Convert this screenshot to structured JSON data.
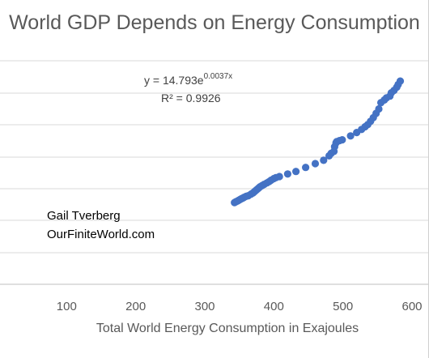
{
  "chart_data": {
    "type": "scatter",
    "title": "World GDP Depends on Energy Consumption",
    "xlabel": "Total World Energy Consumption in Exajoules",
    "ylabel": "",
    "xlim": [
      0,
      600
    ],
    "ylim": [
      0,
      110
    ],
    "x_ticks": [
      "100",
      "200",
      "300",
      "400",
      "500",
      "600"
    ],
    "grid": "horizontal",
    "color": "#4472C4",
    "trendline": {
      "equation_base": "y = 14.793e",
      "equation_exponent": "0.0037x",
      "r_squared": "R² = 0.9926"
    },
    "annotations": [
      "Gail Tverberg",
      "OurFiniteWorld.com"
    ],
    "points": [
      [
        343,
        40.2
      ],
      [
        345,
        40.6
      ],
      [
        347,
        40.9
      ],
      [
        349,
        41.3
      ],
      [
        351,
        41.7
      ],
      [
        353,
        42.1
      ],
      [
        355,
        42.4
      ],
      [
        357,
        42.8
      ],
      [
        360,
        43.3
      ],
      [
        363,
        43.6
      ],
      [
        367,
        44.4
      ],
      [
        370,
        45.0
      ],
      [
        372,
        45.6
      ],
      [
        374,
        46.2
      ],
      [
        376,
        46.8
      ],
      [
        378,
        47.4
      ],
      [
        380,
        48.0
      ],
      [
        383,
        48.6
      ],
      [
        386,
        49.2
      ],
      [
        390,
        49.9
      ],
      [
        393,
        50.5
      ],
      [
        396,
        51.2
      ],
      [
        400,
        52.0
      ],
      [
        403,
        52.5
      ],
      [
        408,
        53.0
      ],
      [
        420,
        54.3
      ],
      [
        432,
        55.5
      ],
      [
        446,
        57.5
      ],
      [
        460,
        59.4
      ],
      [
        472,
        61.0
      ],
      [
        480,
        63.2
      ],
      [
        483,
        64.5
      ],
      [
        487,
        65.4
      ],
      [
        488,
        67.7
      ],
      [
        490,
        69.6
      ],
      [
        491,
        70.2
      ],
      [
        495,
        70.7
      ],
      [
        499,
        71.1
      ],
      [
        511,
        73.0
      ],
      [
        520,
        74.7
      ],
      [
        527,
        76.2
      ],
      [
        532,
        77.5
      ],
      [
        536,
        78.6
      ],
      [
        540,
        80.2
      ],
      [
        544,
        82.0
      ],
      [
        548,
        84.1
      ],
      [
        552,
        86.3
      ],
      [
        555,
        89.4
      ],
      [
        560,
        90.7
      ],
      [
        563,
        91.7
      ],
      [
        568,
        92.6
      ],
      [
        570,
        94.2
      ],
      [
        574,
        95.4
      ],
      [
        578,
        97.0
      ],
      [
        580,
        98.3
      ],
      [
        583,
        100.0
      ]
    ]
  }
}
